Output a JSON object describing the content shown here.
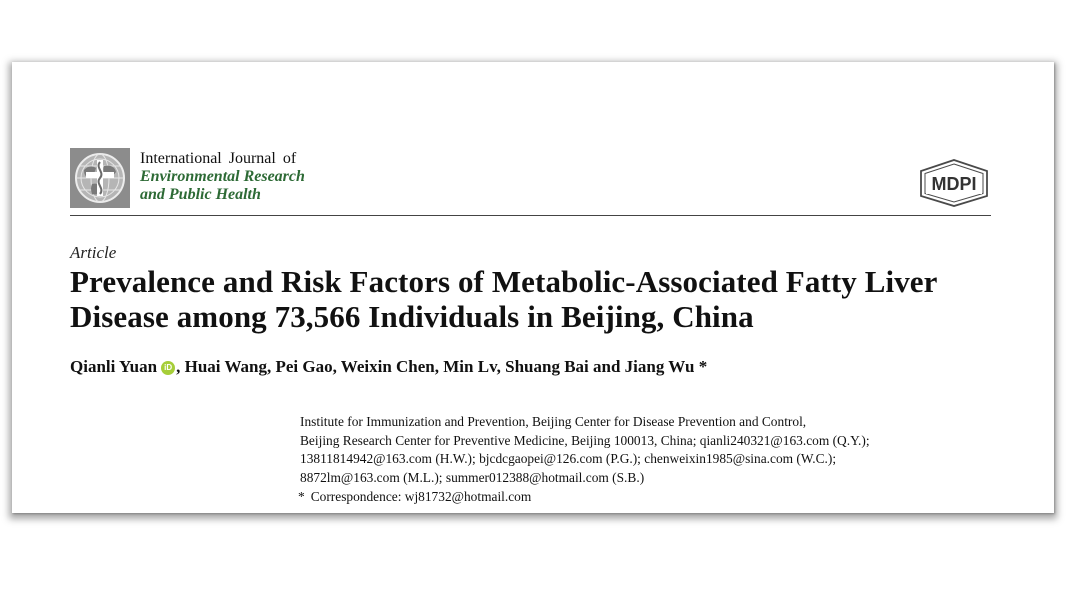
{
  "journal": {
    "line1": "International Journal of",
    "line2": "Environmental Research",
    "line3": "and Public Health",
    "accent_color": "#2d6a35"
  },
  "publisher": {
    "name": "MDPI"
  },
  "article": {
    "type": "Article",
    "title_line1": "Prevalence and Risk Factors of Metabolic-Associated Fatty Liver",
    "title_line2": "Disease among 73,566 Individuals in Beijing, China"
  },
  "authors": {
    "first": "Qianli Yuan",
    "rest": ", Huai Wang, Pei Gao, Weixin Chen, Min Lv, Shuang Bai and Jiang Wu *",
    "orcid_icon": "orcid-icon",
    "orcid_color": "#a6ce39"
  },
  "affiliation": {
    "lines": [
      "Institute for Immunization and Prevention, Beijing Center for Disease Prevention and Control,",
      "Beijing Research Center for Preventive Medicine, Beijing 100013, China; qianli240321@163.com (Q.Y.);",
      "13811814942@163.com (H.W.); bjcdcgaopei@126.com (P.G.); chenweixin1985@sina.com (W.C.);",
      "8872lm@163.com (M.L.); summer012388@hotmail.com (S.B.)"
    ]
  },
  "correspondence": {
    "marker": "*",
    "text": "Correspondence: wj81732@hotmail.com"
  }
}
